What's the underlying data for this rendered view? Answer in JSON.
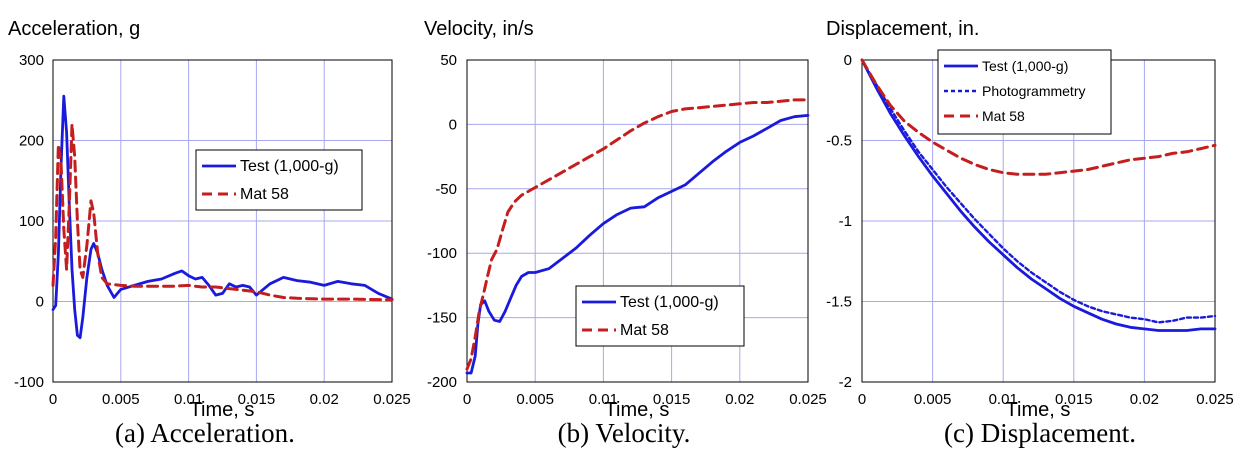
{
  "colors": {
    "test": "#1a1adc",
    "mat": "#c41e1e",
    "grid": "#a8a8f0"
  },
  "captions": [
    "(a) Acceleration.",
    "(b) Velocity.",
    "(c) Displacement."
  ],
  "chart_data": [
    {
      "type": "line",
      "title": "Acceleration, g",
      "xlabel": "Time, s",
      "ylabel": "",
      "xlim": [
        0,
        0.025
      ],
      "ylim": [
        -100,
        300
      ],
      "xticks": [
        0,
        0.005,
        0.01,
        0.015,
        0.02,
        0.025
      ],
      "xtick_labels": [
        "0",
        "0.005",
        "0.01",
        "0.015",
        "0.02",
        "0.025"
      ],
      "yticks": [
        -100,
        0,
        100,
        200,
        300
      ],
      "ytick_labels": [
        "-100",
        "0",
        "100",
        "200",
        "300"
      ],
      "grid": true,
      "legend_position": "right",
      "series": [
        {
          "name": "Test (1,000-g)",
          "style": "solid",
          "color_key": "test",
          "points": [
            [
              0,
              -10
            ],
            [
              0.0002,
              -5
            ],
            [
              0.0004,
              60
            ],
            [
              0.0006,
              170
            ],
            [
              0.0008,
              255
            ],
            [
              0.001,
              210
            ],
            [
              0.0012,
              120
            ],
            [
              0.0014,
              40
            ],
            [
              0.0016,
              -10
            ],
            [
              0.0018,
              -42
            ],
            [
              0.002,
              -45
            ],
            [
              0.0022,
              -20
            ],
            [
              0.0025,
              30
            ],
            [
              0.0028,
              65
            ],
            [
              0.003,
              72
            ],
            [
              0.0033,
              60
            ],
            [
              0.0036,
              40
            ],
            [
              0.004,
              20
            ],
            [
              0.0045,
              5
            ],
            [
              0.005,
              15
            ],
            [
              0.006,
              20
            ],
            [
              0.007,
              25
            ],
            [
              0.008,
              28
            ],
            [
              0.009,
              35
            ],
            [
              0.0095,
              38
            ],
            [
              0.01,
              32
            ],
            [
              0.0105,
              28
            ],
            [
              0.011,
              30
            ],
            [
              0.0115,
              20
            ],
            [
              0.012,
              8
            ],
            [
              0.0125,
              10
            ],
            [
              0.013,
              22
            ],
            [
              0.0135,
              18
            ],
            [
              0.014,
              20
            ],
            [
              0.0145,
              18
            ],
            [
              0.015,
              8
            ],
            [
              0.016,
              22
            ],
            [
              0.017,
              30
            ],
            [
              0.018,
              26
            ],
            [
              0.019,
              24
            ],
            [
              0.02,
              20
            ],
            [
              0.021,
              25
            ],
            [
              0.022,
              22
            ],
            [
              0.023,
              20
            ],
            [
              0.024,
              10
            ],
            [
              0.025,
              3
            ]
          ]
        },
        {
          "name": "Mat 58",
          "style": "dashed",
          "color_key": "mat",
          "points": [
            [
              0,
              20
            ],
            [
              0.0002,
              80
            ],
            [
              0.0004,
              195
            ],
            [
              0.0006,
              170
            ],
            [
              0.0008,
              90
            ],
            [
              0.001,
              40
            ],
            [
              0.0012,
              120
            ],
            [
              0.0014,
              220
            ],
            [
              0.0016,
              180
            ],
            [
              0.0018,
              100
            ],
            [
              0.002,
              40
            ],
            [
              0.0022,
              30
            ],
            [
              0.0025,
              70
            ],
            [
              0.0028,
              125
            ],
            [
              0.003,
              110
            ],
            [
              0.0033,
              60
            ],
            [
              0.0036,
              30
            ],
            [
              0.004,
              22
            ],
            [
              0.005,
              20
            ],
            [
              0.006,
              19
            ],
            [
              0.007,
              19
            ],
            [
              0.008,
              19
            ],
            [
              0.009,
              19
            ],
            [
              0.01,
              20
            ],
            [
              0.011,
              18
            ],
            [
              0.012,
              18
            ],
            [
              0.013,
              16
            ],
            [
              0.014,
              14
            ],
            [
              0.015,
              12
            ],
            [
              0.016,
              8
            ],
            [
              0.017,
              5
            ],
            [
              0.018,
              4
            ],
            [
              0.02,
              3
            ],
            [
              0.022,
              3
            ],
            [
              0.025,
              2
            ]
          ]
        }
      ]
    },
    {
      "type": "line",
      "title": "Velocity, in/s",
      "xlabel": "Time, s",
      "ylabel": "",
      "xlim": [
        0,
        0.025
      ],
      "ylim": [
        -200,
        50
      ],
      "xticks": [
        0,
        0.005,
        0.01,
        0.015,
        0.02,
        0.025
      ],
      "xtick_labels": [
        "0",
        "0.005",
        "0.01",
        "0.015",
        "0.02",
        "0.025"
      ],
      "yticks": [
        -200,
        -150,
        -100,
        -50,
        0,
        50
      ],
      "ytick_labels": [
        "-200",
        "-150",
        "-100",
        "-50",
        "0",
        "50"
      ],
      "grid": true,
      "legend_position": "bottom-right",
      "series": [
        {
          "name": "Test (1,000-g)",
          "style": "solid",
          "color_key": "test",
          "points": [
            [
              0,
              -193
            ],
            [
              0.0003,
              -193
            ],
            [
              0.0006,
              -180
            ],
            [
              0.0008,
              -155
            ],
            [
              0.001,
              -140
            ],
            [
              0.0013,
              -137
            ],
            [
              0.0016,
              -145
            ],
            [
              0.002,
              -152
            ],
            [
              0.0024,
              -153
            ],
            [
              0.0028,
              -145
            ],
            [
              0.0032,
              -135
            ],
            [
              0.0036,
              -125
            ],
            [
              0.004,
              -118
            ],
            [
              0.0045,
              -115
            ],
            [
              0.005,
              -115
            ],
            [
              0.006,
              -112
            ],
            [
              0.007,
              -104
            ],
            [
              0.008,
              -96
            ],
            [
              0.009,
              -86
            ],
            [
              0.01,
              -77
            ],
            [
              0.011,
              -70
            ],
            [
              0.012,
              -65
            ],
            [
              0.013,
              -64
            ],
            [
              0.014,
              -57
            ],
            [
              0.015,
              -52
            ],
            [
              0.016,
              -47
            ],
            [
              0.017,
              -38
            ],
            [
              0.018,
              -29
            ],
            [
              0.019,
              -21
            ],
            [
              0.02,
              -14
            ],
            [
              0.021,
              -9
            ],
            [
              0.022,
              -3
            ],
            [
              0.023,
              3
            ],
            [
              0.024,
              6
            ],
            [
              0.025,
              7
            ]
          ]
        },
        {
          "name": "Mat 58",
          "style": "dashed",
          "color_key": "mat",
          "points": [
            [
              0,
              -190
            ],
            [
              0.0003,
              -182
            ],
            [
              0.0006,
              -165
            ],
            [
              0.0009,
              -145
            ],
            [
              0.0012,
              -132
            ],
            [
              0.0015,
              -118
            ],
            [
              0.0018,
              -105
            ],
            [
              0.0022,
              -97
            ],
            [
              0.0026,
              -82
            ],
            [
              0.003,
              -68
            ],
            [
              0.0035,
              -60
            ],
            [
              0.004,
              -55
            ],
            [
              0.005,
              -49
            ],
            [
              0.006,
              -43
            ],
            [
              0.007,
              -37
            ],
            [
              0.008,
              -31
            ],
            [
              0.009,
              -25
            ],
            [
              0.01,
              -19
            ],
            [
              0.011,
              -12
            ],
            [
              0.012,
              -5
            ],
            [
              0.013,
              1
            ],
            [
              0.014,
              6
            ],
            [
              0.015,
              10
            ],
            [
              0.016,
              12
            ],
            [
              0.017,
              13
            ],
            [
              0.018,
              14
            ],
            [
              0.019,
              15
            ],
            [
              0.02,
              16
            ],
            [
              0.021,
              17
            ],
            [
              0.022,
              17
            ],
            [
              0.023,
              18
            ],
            [
              0.024,
              19
            ],
            [
              0.025,
              19
            ]
          ]
        }
      ]
    },
    {
      "type": "line",
      "title": "Displacement, in.",
      "xlabel": "Time, s",
      "ylabel": "",
      "xlim": [
        0,
        0.025
      ],
      "ylim": [
        -2,
        0
      ],
      "xticks": [
        0,
        0.005,
        0.01,
        0.015,
        0.02,
        0.025
      ],
      "xtick_labels": [
        "0",
        "0.005",
        "0.01",
        "0.015",
        "0.02",
        "0.025"
      ],
      "yticks": [
        -2,
        -1.5,
        -1,
        -0.5,
        0
      ],
      "ytick_labels": [
        "-2",
        "-1.5",
        "-1",
        "-0.5",
        "0"
      ],
      "grid": true,
      "legend_position": "top-right",
      "series": [
        {
          "name": "Test (1,000-g)",
          "style": "solid",
          "color_key": "test",
          "points": [
            [
              0,
              0
            ],
            [
              0.001,
              -0.17
            ],
            [
              0.002,
              -0.33
            ],
            [
              0.003,
              -0.47
            ],
            [
              0.004,
              -0.6
            ],
            [
              0.005,
              -0.72
            ],
            [
              0.006,
              -0.83
            ],
            [
              0.007,
              -0.94
            ],
            [
              0.008,
              -1.04
            ],
            [
              0.009,
              -1.13
            ],
            [
              0.01,
              -1.21
            ],
            [
              0.011,
              -1.29
            ],
            [
              0.012,
              -1.36
            ],
            [
              0.013,
              -1.42
            ],
            [
              0.014,
              -1.48
            ],
            [
              0.015,
              -1.53
            ],
            [
              0.016,
              -1.57
            ],
            [
              0.017,
              -1.61
            ],
            [
              0.018,
              -1.64
            ],
            [
              0.019,
              -1.66
            ],
            [
              0.02,
              -1.67
            ],
            [
              0.021,
              -1.68
            ],
            [
              0.022,
              -1.68
            ],
            [
              0.023,
              -1.68
            ],
            [
              0.024,
              -1.67
            ],
            [
              0.025,
              -1.67
            ]
          ]
        },
        {
          "name": "Photogrammetry",
          "style": "dotted",
          "color_key": "test",
          "points": [
            [
              0,
              0
            ],
            [
              0.001,
              -0.15
            ],
            [
              0.002,
              -0.3
            ],
            [
              0.003,
              -0.44
            ],
            [
              0.004,
              -0.57
            ],
            [
              0.005,
              -0.68
            ],
            [
              0.006,
              -0.79
            ],
            [
              0.007,
              -0.89
            ],
            [
              0.008,
              -0.99
            ],
            [
              0.009,
              -1.08
            ],
            [
              0.01,
              -1.17
            ],
            [
              0.011,
              -1.25
            ],
            [
              0.012,
              -1.32
            ],
            [
              0.013,
              -1.38
            ],
            [
              0.014,
              -1.44
            ],
            [
              0.015,
              -1.49
            ],
            [
              0.016,
              -1.53
            ],
            [
              0.017,
              -1.56
            ],
            [
              0.018,
              -1.58
            ],
            [
              0.019,
              -1.6
            ],
            [
              0.02,
              -1.61
            ],
            [
              0.021,
              -1.63
            ],
            [
              0.022,
              -1.62
            ],
            [
              0.023,
              -1.6
            ],
            [
              0.024,
              -1.6
            ],
            [
              0.025,
              -1.59
            ]
          ]
        },
        {
          "name": "Mat 58",
          "style": "dashed",
          "color_key": "mat",
          "points": [
            [
              0,
              0
            ],
            [
              0.001,
              -0.15
            ],
            [
              0.002,
              -0.28
            ],
            [
              0.003,
              -0.38
            ],
            [
              0.004,
              -0.45
            ],
            [
              0.005,
              -0.51
            ],
            [
              0.006,
              -0.56
            ],
            [
              0.007,
              -0.61
            ],
            [
              0.008,
              -0.65
            ],
            [
              0.009,
              -0.68
            ],
            [
              0.01,
              -0.7
            ],
            [
              0.011,
              -0.71
            ],
            [
              0.012,
              -0.71
            ],
            [
              0.013,
              -0.71
            ],
            [
              0.014,
              -0.7
            ],
            [
              0.015,
              -0.69
            ],
            [
              0.016,
              -0.68
            ],
            [
              0.017,
              -0.66
            ],
            [
              0.018,
              -0.64
            ],
            [
              0.019,
              -0.62
            ],
            [
              0.02,
              -0.61
            ],
            [
              0.021,
              -0.6
            ],
            [
              0.022,
              -0.58
            ],
            [
              0.023,
              -0.57
            ],
            [
              0.024,
              -0.55
            ],
            [
              0.025,
              -0.53
            ]
          ]
        }
      ]
    }
  ]
}
